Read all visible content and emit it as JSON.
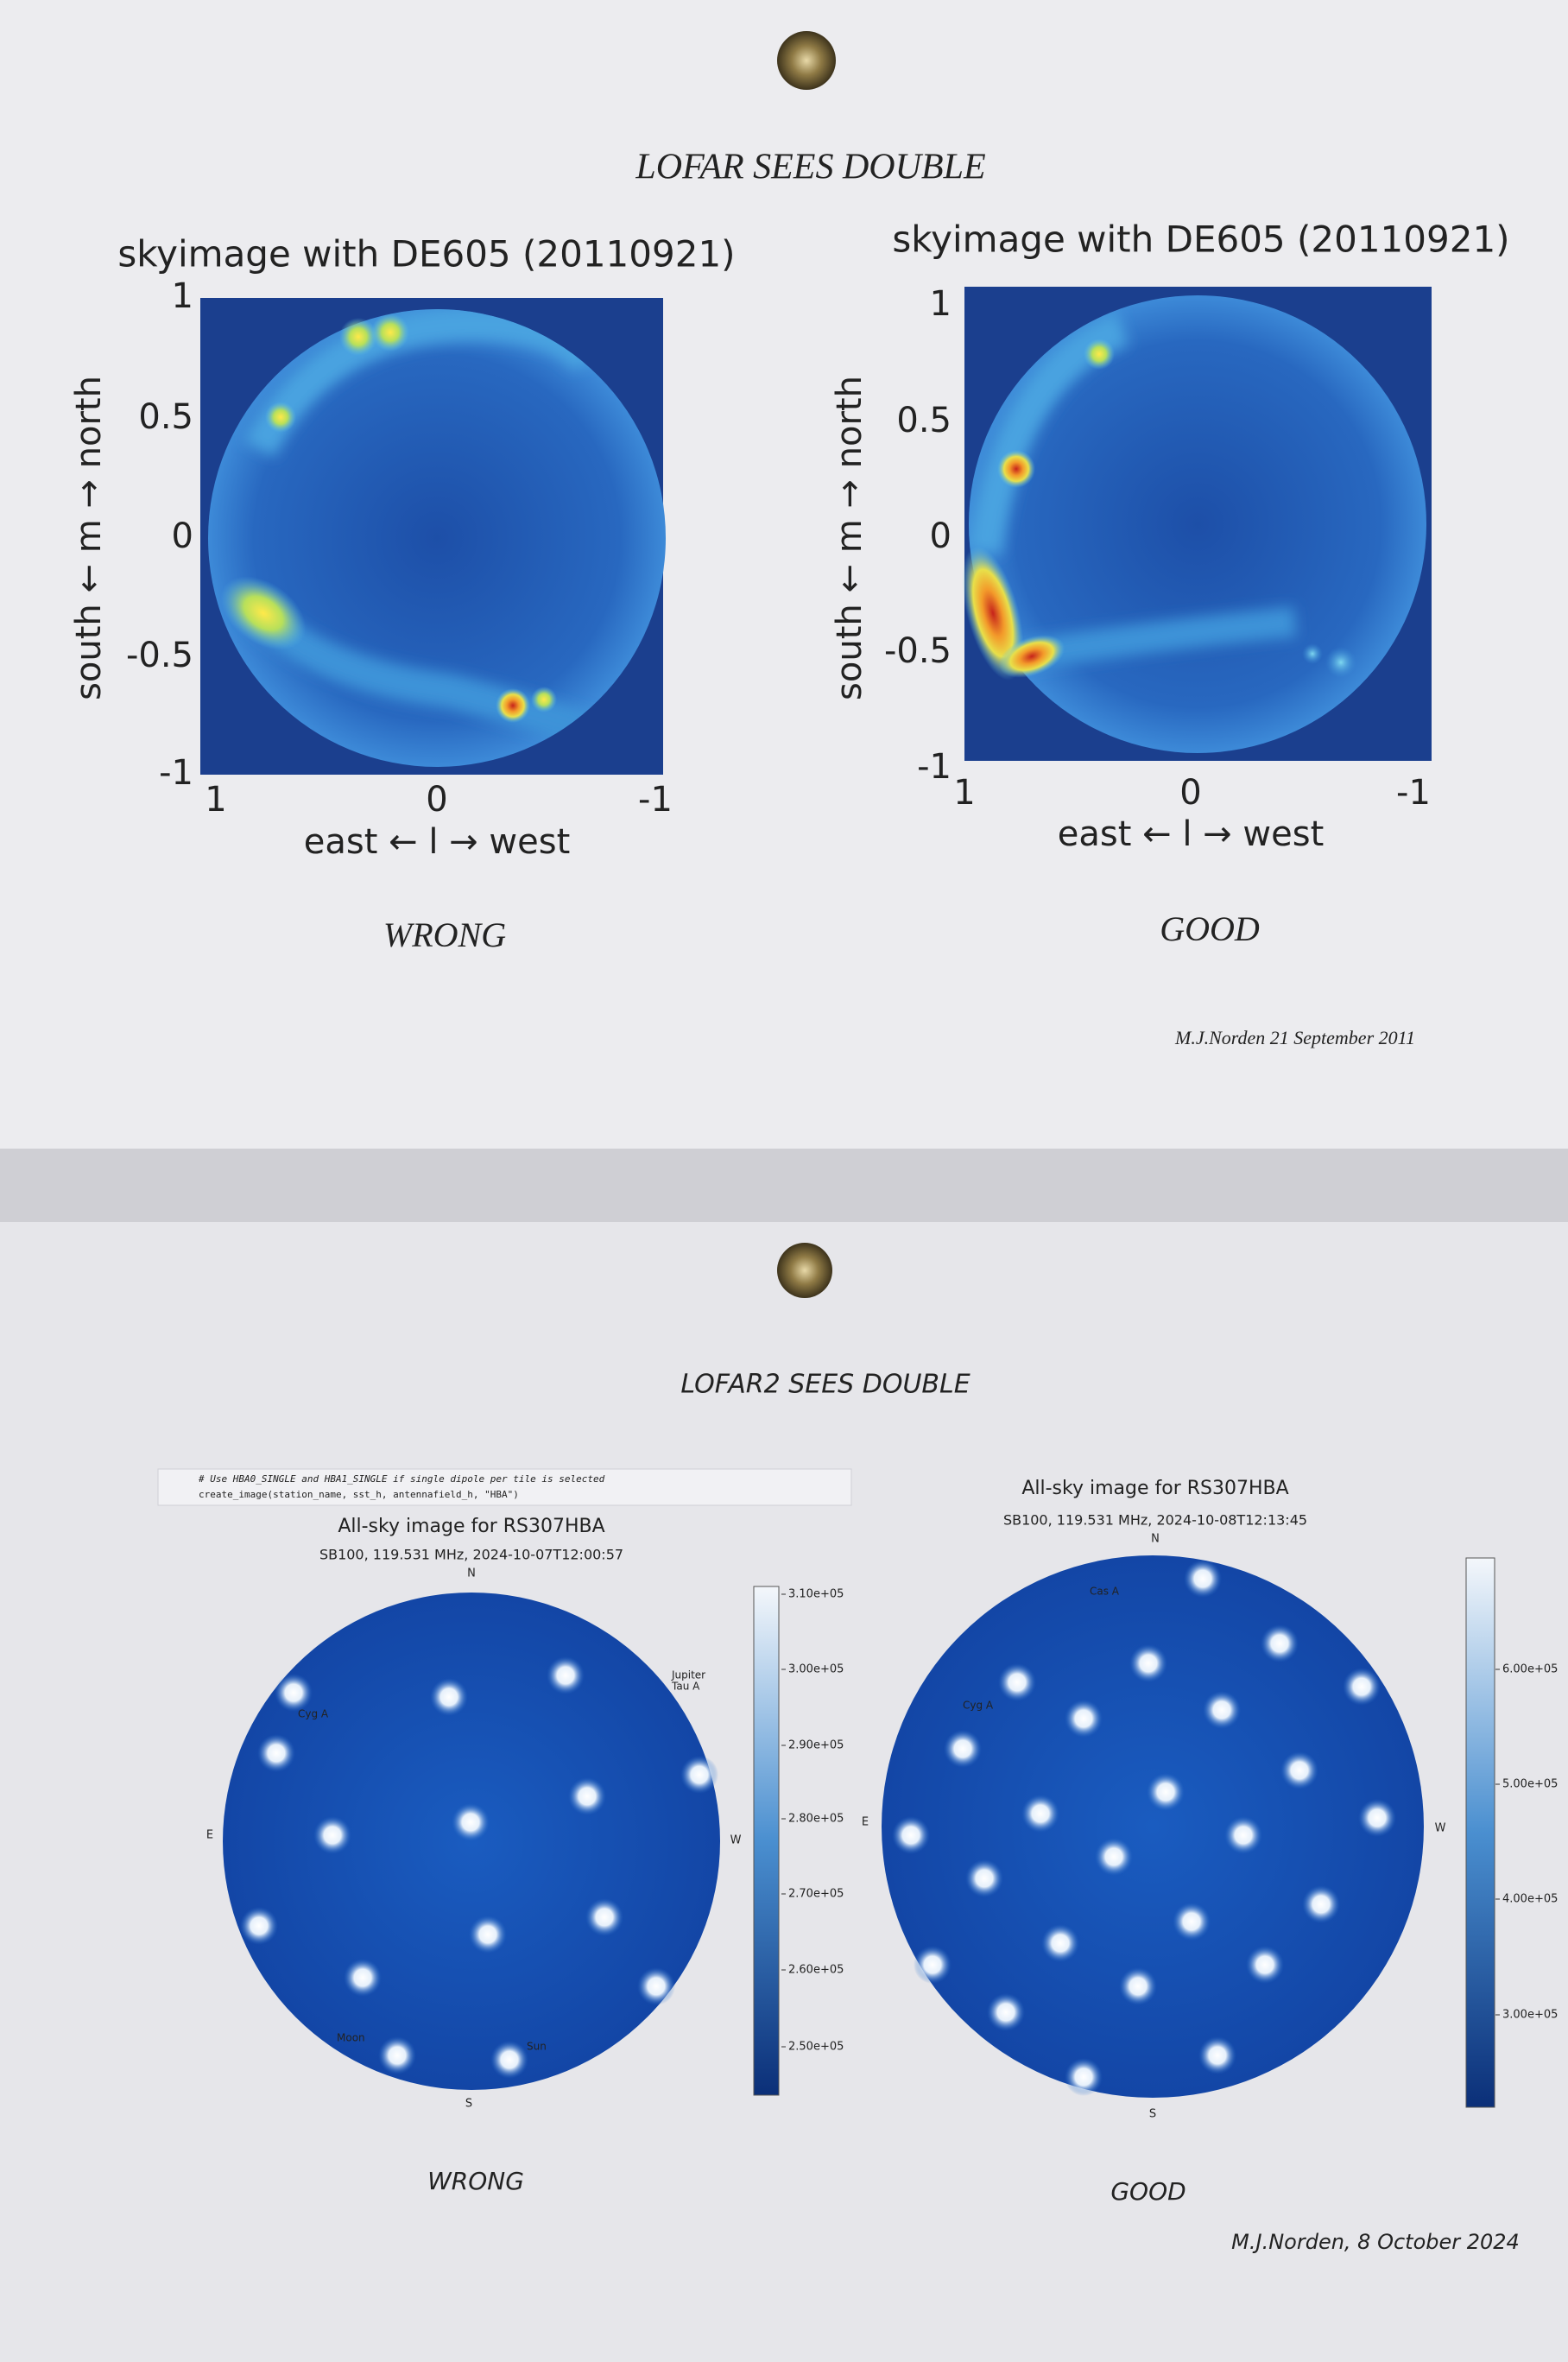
{
  "top_sheet": {
    "title": "LOFAR SEES DOUBLE",
    "panels": [
      {
        "title": "skyimage with DE605 (20110921)",
        "y_label": "south ← m → north",
        "x_label": "east ← l → west",
        "y_ticks": [
          "1",
          "0.5",
          "0",
          "-0.5",
          "-1"
        ],
        "x_ticks": [
          "1",
          "0",
          "-1"
        ],
        "caption": "WRONG"
      },
      {
        "title": "skyimage with DE605 (20110921)",
        "y_label": "south ← m → north",
        "x_label": "east ← l → west",
        "y_ticks": [
          "1",
          "0.5",
          "0",
          "-0.5",
          "-1"
        ],
        "x_ticks": [
          "1",
          "0",
          "-1"
        ],
        "caption": "GOOD"
      }
    ],
    "signature": "M.J.Norden 21 September 2011"
  },
  "bottom_sheet": {
    "title": "LOFAR2 SEES DOUBLE",
    "code": [
      "# Use HBA0_SINGLE and HBA1_SINGLE if single dipole per tile is selected",
      "create_image(station_name, sst_h, antennafield_h, \"HBA\")"
    ],
    "panels": [
      {
        "title": "All-sky image for RS307HBA",
        "subtitle": "SB100, 119.531 MHz, 2024-10-07T12:00:57",
        "compass": [
          "N",
          "E",
          "W",
          "S"
        ],
        "sources": [
          "Cyg A",
          "Jupiter",
          "Tau A",
          "Moon",
          "Sun"
        ],
        "colorbar_ticks": [
          "3.10e+05",
          "3.00e+05",
          "2.90e+05",
          "2.80e+05",
          "2.70e+05",
          "2.60e+05",
          "2.50e+05"
        ],
        "caption": "WRONG"
      },
      {
        "title": "All-sky image for RS307HBA",
        "subtitle": "SB100, 119.531 MHz, 2024-10-08T12:13:45",
        "compass": [
          "N",
          "E",
          "W",
          "S"
        ],
        "sources": [
          "Cas A",
          "Cyg A"
        ],
        "colorbar_ticks": [
          "6.00e+05",
          "5.00e+05",
          "4.00e+05",
          "3.00e+05"
        ],
        "caption": "GOOD"
      }
    ],
    "signature": "M.J.Norden, 8 October 2024"
  }
}
